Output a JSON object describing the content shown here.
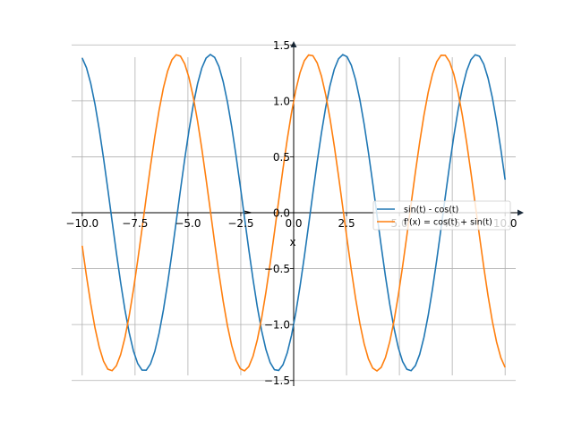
{
  "chart_data": {
    "type": "line",
    "title": "",
    "xlabel": "x",
    "ylabel": "",
    "xlim": [
      -10.5,
      10.5
    ],
    "ylim": [
      -1.55,
      1.55
    ],
    "grid": true,
    "legend_position": "center-right",
    "x_ticks": [
      -10.0,
      -7.5,
      -5.0,
      -2.5,
      0.0,
      2.5,
      5.0,
      7.5,
      10.0
    ],
    "x_tick_labels": [
      "−10.0",
      "−7.5",
      "−5.0",
      "−2.5",
      "0.0",
      "2.5",
      "5.0",
      "7.5",
      "10.0"
    ],
    "y_ticks": [
      -1.5,
      -1.0,
      -0.5,
      0.0,
      0.5,
      1.0,
      1.5
    ],
    "y_tick_labels": [
      "−1.5",
      "−1.0",
      "−0.5",
      "0.0",
      "0.5",
      "1.0",
      "1.5"
    ],
    "x_range": [
      -10,
      10
    ],
    "series": [
      {
        "name": "sin(t) - cos(t)",
        "color": "#1f77b4",
        "expression": "sin(t) - cos(t)"
      },
      {
        "name": "f'(x) = cos(t) + sin(t)",
        "color": "#ff7f0e",
        "expression": "cos(t) + sin(t)"
      }
    ]
  },
  "colors": {
    "axis": "#000000",
    "axis_arrow": "#1a2a3a",
    "grid": "#b0b0b0",
    "legend_border": "#cccccc"
  }
}
